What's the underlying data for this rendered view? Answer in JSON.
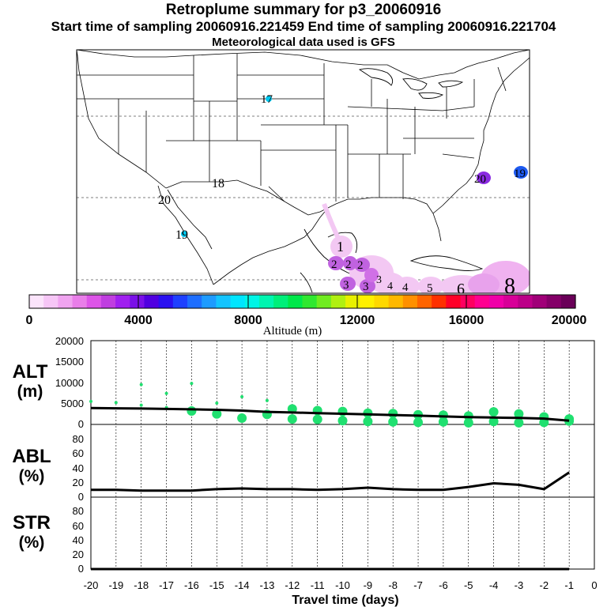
{
  "header": {
    "title": "Retroplume summary for p3_20060916",
    "subtitle": "Start time of sampling 20060916.221459     End time of sampling 20060916.221704",
    "met": "Meteorological data used is GFS"
  },
  "colors": {
    "scale": [
      "#fbe4fb",
      "#f6c6f6",
      "#f0a4f0",
      "#e97ee9",
      "#dd55e8",
      "#c03ee0",
      "#a020f0",
      "#7a10e8",
      "#5000e0",
      "#2a10f0",
      "#1e40ff",
      "#1e6eff",
      "#1e9bff",
      "#14c4ff",
      "#00e5ff",
      "#00f5e6",
      "#00f5b0",
      "#00ef7a",
      "#00e84a",
      "#30e830",
      "#70ec20",
      "#b0f010",
      "#e8f000",
      "#fff000",
      "#ffd800",
      "#ffb800",
      "#ff9000",
      "#ff6400",
      "#ff3000",
      "#ff0028",
      "#ff0060",
      "#ff0090",
      "#f000a8",
      "#d80098",
      "#bc0088",
      "#a00078",
      "#840068",
      "#6a0058"
    ],
    "plume_light": "#f3c8f3",
    "plume_mid": "#e8a2ec",
    "plume_dark": "#c062e0",
    "marker_purple": "#8a2be2",
    "marker_cyan": "#00c8f0",
    "marker_blue": "#1e5af0",
    "alt_points": "#20e070"
  },
  "map": {
    "day_labels": [
      {
        "text": "1",
        "kind": "plume"
      },
      {
        "text": "2",
        "kind": "plume"
      },
      {
        "text": "2",
        "kind": "plume"
      },
      {
        "text": "2",
        "kind": "plume"
      },
      {
        "text": "3",
        "kind": "plume"
      },
      {
        "text": "3",
        "kind": "plume"
      },
      {
        "text": "3",
        "kind": "plume"
      },
      {
        "text": "4",
        "kind": "plume"
      },
      {
        "text": "4",
        "kind": "plume"
      },
      {
        "text": "5",
        "kind": "plume"
      },
      {
        "text": "6",
        "kind": "plume"
      },
      {
        "text": "8",
        "kind": "plume"
      },
      {
        "text": "17",
        "kind": "cyan"
      },
      {
        "text": "18",
        "kind": "purple"
      },
      {
        "text": "20",
        "kind": "purple"
      },
      {
        "text": "19",
        "kind": "cyan"
      },
      {
        "text": "20",
        "kind": "purple"
      },
      {
        "text": "19",
        "kind": "blue"
      }
    ]
  },
  "colorbar": {
    "ticks": [
      "0",
      "4000",
      "8000",
      "12000",
      "16000",
      "20000"
    ],
    "label": "Altitude (m)",
    "range": [
      0,
      20000
    ]
  },
  "chart_data": [
    {
      "type": "line",
      "panel": "ALT",
      "ylabel": [
        "ALT",
        "(m)"
      ],
      "ylim": [
        0,
        20000
      ],
      "yticks": [
        "20000",
        "15000",
        "10000",
        "5000",
        "0"
      ],
      "x": [
        -20,
        -19,
        -18,
        -17,
        -16,
        -15,
        -14,
        -13,
        -12,
        -11,
        -10,
        -9,
        -8,
        -7,
        -6,
        -5,
        -4,
        -3,
        -2,
        -1
      ],
      "values": [
        3900,
        3850,
        3800,
        3700,
        3600,
        3500,
        3300,
        3000,
        2850,
        2700,
        2550,
        2400,
        2250,
        2100,
        1900,
        1750,
        1650,
        1550,
        1400,
        900
      ],
      "scatter_points": [
        [
          -20,
          5500
        ],
        [
          -19,
          5200
        ],
        [
          -18,
          9500
        ],
        [
          -18,
          4600
        ],
        [
          -17,
          7400
        ],
        [
          -17,
          4000
        ],
        [
          -16,
          9800
        ],
        [
          -16,
          3200
        ],
        [
          -15,
          5100
        ],
        [
          -15,
          2500
        ],
        [
          -14,
          6600
        ],
        [
          -14,
          1500
        ],
        [
          -13,
          5700
        ],
        [
          -13,
          2400
        ],
        [
          -12,
          3700
        ],
        [
          -12,
          1300
        ],
        [
          -11,
          3300
        ],
        [
          -11,
          1200
        ],
        [
          -10,
          3100
        ],
        [
          -10,
          900
        ],
        [
          -9,
          2700
        ],
        [
          -9,
          700
        ],
        [
          -8,
          2600
        ],
        [
          -8,
          600
        ],
        [
          -7,
          2300
        ],
        [
          -7,
          500
        ],
        [
          -6,
          2200
        ],
        [
          -6,
          600
        ],
        [
          -5,
          2000
        ],
        [
          -5,
          400
        ],
        [
          -4,
          3000
        ],
        [
          -4,
          700
        ],
        [
          -3,
          2500
        ],
        [
          -3,
          400
        ],
        [
          -2,
          1800
        ],
        [
          -2,
          500
        ],
        [
          -1,
          1300
        ],
        [
          -1,
          800
        ]
      ]
    },
    {
      "type": "line",
      "panel": "ABL",
      "ylabel": [
        "ABL",
        "(%)"
      ],
      "ylim": [
        0,
        100
      ],
      "yticks": [
        "80",
        "60",
        "40",
        "20",
        "0"
      ],
      "x": [
        -20,
        -19,
        -18,
        -17,
        -16,
        -15,
        -14,
        -13,
        -12,
        -11,
        -10,
        -9,
        -8,
        -7,
        -6,
        -5,
        -4,
        -3,
        -2,
        -1
      ],
      "values": [
        10,
        10,
        9,
        9,
        9,
        11,
        12,
        11,
        11,
        10,
        11,
        13,
        11,
        10,
        10,
        14,
        19,
        17,
        11,
        34
      ]
    },
    {
      "type": "line",
      "panel": "STR",
      "ylabel": [
        "STR",
        "(%)"
      ],
      "ylim": [
        0,
        100
      ],
      "yticks": [
        "80",
        "60",
        "40",
        "20",
        "0"
      ],
      "x": [
        -20,
        -19,
        -18,
        -17,
        -16,
        -15,
        -14,
        -13,
        -12,
        -11,
        -10,
        -9,
        -8,
        -7,
        -6,
        -5,
        -4,
        -3,
        -2,
        -1
      ],
      "values": [
        0,
        0,
        0,
        0,
        0,
        0,
        0,
        0,
        0,
        0,
        0,
        0,
        0,
        0,
        0,
        0,
        0,
        0,
        0,
        0
      ]
    }
  ],
  "xaxis": {
    "ticks": [
      "-20",
      "-19",
      "-18",
      "-17",
      "-16",
      "-15",
      "-14",
      "-13",
      "-12",
      "-11",
      "-10",
      "-9",
      "-8",
      "-7",
      "-6",
      "-5",
      "-4",
      "-3",
      "-2",
      "-1",
      "0"
    ],
    "label": "Travel time (days)"
  }
}
